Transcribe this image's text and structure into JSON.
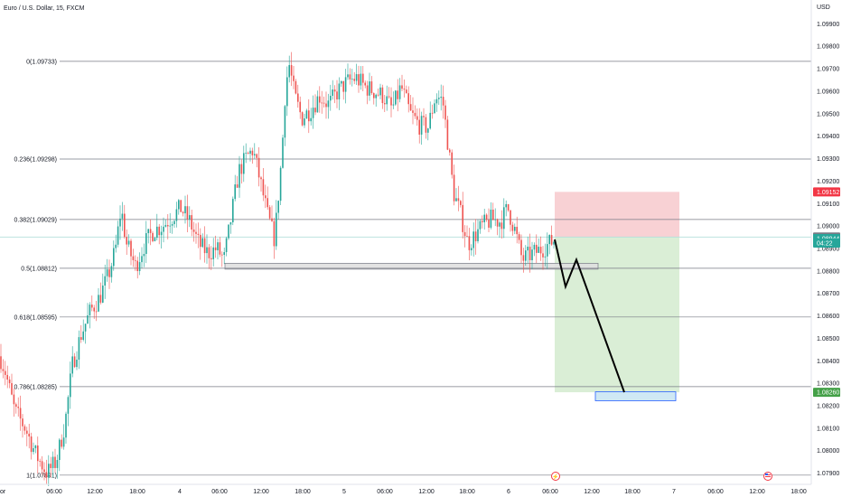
{
  "header": {
    "symbol": "Euro / U.S. Dollar, 15, FXCM"
  },
  "price_axis": {
    "currency": "USD"
  },
  "colors": {
    "up": "#26a69a",
    "down": "#ef5350",
    "fib_line": "#787b86",
    "stop_zone": "#f7c9cd",
    "target_zone": "#d6ecd2",
    "target_box": "#cfe8f4",
    "current_price_tag": "#26a69a",
    "stop_tag": "#f23645",
    "target_tag": "#43a047",
    "grey_tag": "#787b86"
  },
  "chart_data": {
    "type": "candlestick",
    "ylim": [
      1.0785,
      1.0999
    ],
    "y_ticks": [
      "1.09900",
      "1.09800",
      "1.09700",
      "1.09600",
      "1.09500",
      "1.09400",
      "1.09300",
      "1.09200",
      "1.09100",
      "1.09000",
      "1.08900",
      "1.08800",
      "1.08700",
      "1.08600",
      "1.08500",
      "1.08400",
      "1.08300",
      "1.08200",
      "1.08100",
      "1.08000",
      "1.07900"
    ],
    "x_ticks": [
      "or",
      "06:00",
      "12:00",
      "18:00",
      "4",
      "06:00",
      "12:00",
      "18:00",
      "5",
      "06:00",
      "12:00",
      "18:00",
      "6",
      "06:00",
      "12:00",
      "18:00",
      "7",
      "06:00",
      "12:00",
      "18:00"
    ],
    "fib_levels": [
      {
        "label": "0(1.09733)",
        "value": 1.09733
      },
      {
        "label": "0.236(1.09298)",
        "value": 1.09298
      },
      {
        "label": "0.382(1.09029)",
        "value": 1.09029
      },
      {
        "label": "0.5(1.08812)",
        "value": 1.08812
      },
      {
        "label": "0.618(1.08595)",
        "value": 1.08595
      },
      {
        "label": "0.786(1.08285)",
        "value": 1.08285
      },
      {
        "label": "1(1.07891)",
        "value": 1.07891
      }
    ],
    "price_tags": [
      {
        "text": "1.09152",
        "value": 1.09152,
        "style": "stop"
      },
      {
        "text": "1.08951",
        "value": 1.08951,
        "style": "grey"
      },
      {
        "text": "1.08944",
        "value": 1.08944,
        "style": "current"
      },
      {
        "text": "04:22",
        "value": 1.08924,
        "style": "current"
      },
      {
        "text": "1.08260",
        "value": 1.0826,
        "style": "target"
      }
    ],
    "path_anchors": [
      [
        0,
        1.0842
      ],
      [
        6,
        1.0835
      ],
      [
        16,
        1.0818
      ],
      [
        28,
        1.081
      ],
      [
        40,
        1.0798
      ],
      [
        52,
        1.079
      ],
      [
        62,
        1.0795
      ],
      [
        72,
        1.0812
      ],
      [
        80,
        1.0838
      ],
      [
        90,
        1.0852
      ],
      [
        100,
        1.0862
      ],
      [
        110,
        1.0868
      ],
      [
        120,
        1.0878
      ],
      [
        128,
        1.089
      ],
      [
        134,
        1.0908
      ],
      [
        140,
        1.0892
      ],
      [
        150,
        1.0882
      ],
      [
        160,
        1.0892
      ],
      [
        170,
        1.0898
      ],
      [
        180,
        1.09
      ],
      [
        190,
        1.0904
      ],
      [
        200,
        1.0908
      ],
      [
        210,
        1.0902
      ],
      [
        220,
        1.0892
      ],
      [
        230,
        1.0888
      ],
      [
        240,
        1.089
      ],
      [
        248,
        1.0885
      ],
      [
        256,
        1.0904
      ],
      [
        264,
        1.0924
      ],
      [
        272,
        1.093
      ],
      [
        280,
        1.0934
      ],
      [
        288,
        1.092
      ],
      [
        296,
        1.0905
      ],
      [
        304,
        1.0894
      ],
      [
        312,
        1.0932
      ],
      [
        316,
        1.0962
      ],
      [
        320,
        1.0972
      ],
      [
        326,
        1.0958
      ],
      [
        334,
        1.0948
      ],
      [
        344,
        1.0952
      ],
      [
        354,
        1.0958
      ],
      [
        364,
        1.0954
      ],
      [
        374,
        1.096
      ],
      [
        384,
        1.0964
      ],
      [
        394,
        1.0966
      ],
      [
        404,
        1.0962
      ],
      [
        414,
        1.096
      ],
      [
        424,
        1.0958
      ],
      [
        434,
        1.0952
      ],
      [
        444,
        1.0962
      ],
      [
        454,
        1.095
      ],
      [
        464,
        1.0945
      ],
      [
        474,
        1.0944
      ],
      [
        482,
        1.0958
      ],
      [
        490,
        1.0956
      ],
      [
        496,
        1.0936
      ],
      [
        502,
        1.0915
      ],
      [
        510,
        1.0905
      ],
      [
        518,
        1.0892
      ],
      [
        526,
        1.0896
      ],
      [
        534,
        1.09
      ],
      [
        544,
        1.0903
      ],
      [
        554,
        1.0902
      ],
      [
        562,
        1.0908
      ],
      [
        570,
        1.0898
      ],
      [
        578,
        1.0885
      ],
      [
        586,
        1.0887
      ],
      [
        596,
        1.0889
      ],
      [
        604,
        1.0891
      ],
      [
        614,
        1.0894
      ]
    ]
  },
  "projection_path": [
    [
      614,
      1.0894
    ],
    [
      626,
      1.0873
    ],
    [
      638,
      1.0885
    ],
    [
      691,
      1.0826
    ]
  ],
  "support_zone": {
    "x_start": 249,
    "x_end": 662,
    "top": 1.08834,
    "bottom": 1.08812
  },
  "position": {
    "x_start": 614,
    "x_end": 752,
    "entry": 1.08951,
    "stop": 1.09152,
    "target": 1.0826
  },
  "target_box": {
    "x_start": 659,
    "x_end": 748,
    "top": 1.08262,
    "bottom": 1.08222
  }
}
